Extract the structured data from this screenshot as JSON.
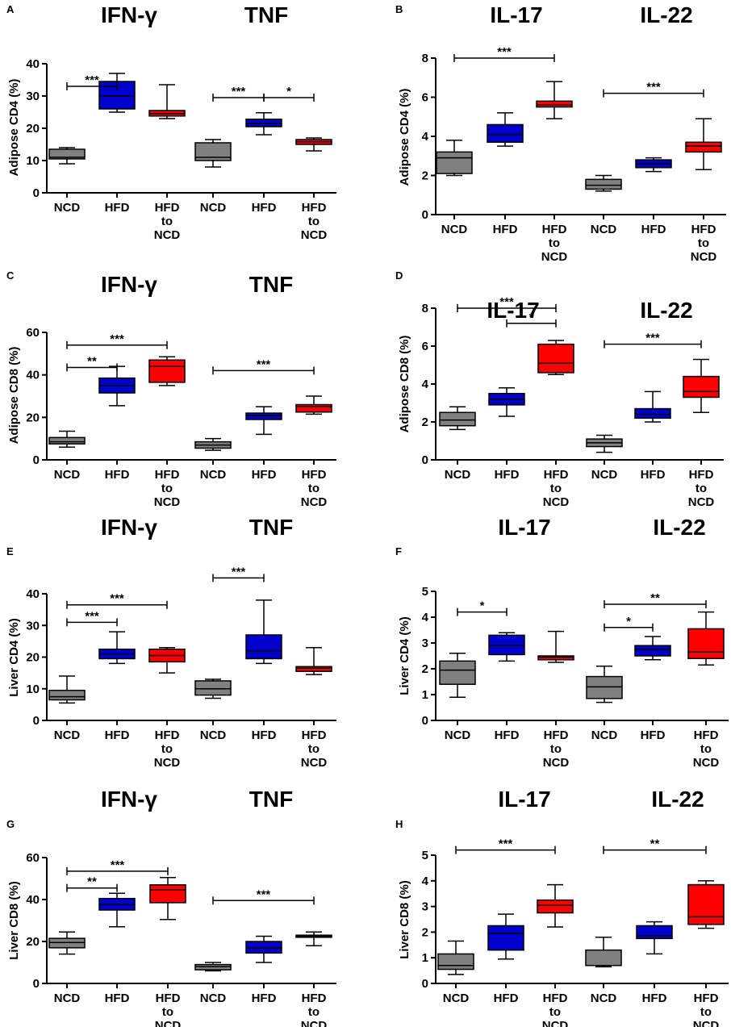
{
  "figure": {
    "colors": {
      "NCD": "#808080",
      "HFD": "#0000cc",
      "HFD to NCD": "#ff0000",
      "axis": "#000000"
    }
  },
  "chart_data": [
    {
      "type": "boxplot",
      "panel": "A",
      "group_titles": [
        "IFN-γ",
        "TNF"
      ],
      "ylabel": "Adipose CD4 (%)",
      "ylim": [
        0,
        40
      ],
      "yticks": [
        0,
        10,
        20,
        30,
        40
      ],
      "categories": [
        [
          "NCD"
        ],
        [
          "HFD"
        ],
        [
          "HFD",
          "to",
          "NCD"
        ],
        [
          "NCD"
        ],
        [
          "HFD"
        ],
        [
          "HFD",
          "to",
          "NCD"
        ]
      ],
      "groups": [
        "NCD",
        "HFD",
        "HFD to NCD",
        "NCD",
        "HFD",
        "HFD to NCD"
      ],
      "boxes": [
        {
          "min": 9.0,
          "q1": 10.5,
          "median": 11.0,
          "q3": 13.5,
          "max": 14.0
        },
        {
          "min": 25.0,
          "q1": 26.0,
          "median": 30.0,
          "q3": 34.5,
          "max": 37.0
        },
        {
          "min": 23.0,
          "q1": 23.8,
          "median": 24.5,
          "q3": 25.5,
          "max": 33.5
        },
        {
          "min": 8.0,
          "q1": 10.0,
          "median": 11.0,
          "q3": 15.5,
          "max": 16.5
        },
        {
          "min": 18.0,
          "q1": 20.5,
          "median": 21.5,
          "q3": 22.8,
          "max": 24.8
        },
        {
          "min": 13.0,
          "q1": 15.0,
          "median": 15.8,
          "q3": 16.5,
          "max": 17.0
        }
      ],
      "significance": [
        {
          "from": 0,
          "to": 1,
          "y": 33.0,
          "label": "***"
        },
        {
          "from": 3,
          "to": 4,
          "y": 29.5,
          "label": "***"
        },
        {
          "from": 4,
          "to": 5,
          "y": 29.5,
          "label": "*"
        }
      ]
    },
    {
      "type": "boxplot",
      "panel": "B",
      "group_titles": [
        "IL-17",
        "IL-22"
      ],
      "ylabel": "Adipose CD4 (%)",
      "ylim": [
        0,
        8
      ],
      "yticks": [
        0,
        2,
        4,
        6,
        8
      ],
      "categories": [
        [
          "NCD"
        ],
        [
          "HFD"
        ],
        [
          "HFD",
          "to",
          "NCD"
        ],
        [
          "NCD"
        ],
        [
          "HFD"
        ],
        [
          "HFD",
          "to",
          "NCD"
        ]
      ],
      "groups": [
        "NCD",
        "HFD",
        "HFD to NCD",
        "NCD",
        "HFD",
        "HFD to NCD"
      ],
      "boxes": [
        {
          "min": 2.0,
          "q1": 2.1,
          "median": 2.9,
          "q3": 3.2,
          "max": 3.8
        },
        {
          "min": 3.5,
          "q1": 3.7,
          "median": 4.1,
          "q3": 4.6,
          "max": 5.2
        },
        {
          "min": 4.9,
          "q1": 5.5,
          "median": 5.6,
          "q3": 5.8,
          "max": 6.8
        },
        {
          "min": 1.2,
          "q1": 1.3,
          "median": 1.5,
          "q3": 1.8,
          "max": 2.0
        },
        {
          "min": 2.2,
          "q1": 2.4,
          "median": 2.6,
          "q3": 2.8,
          "max": 2.9
        },
        {
          "min": 2.3,
          "q1": 3.2,
          "median": 3.5,
          "q3": 3.7,
          "max": 4.9
        }
      ],
      "significance": [
        {
          "from": 0,
          "to": 2,
          "y": 8.0,
          "label": "***"
        },
        {
          "from": 3,
          "to": 5,
          "y": 6.2,
          "label": "***"
        }
      ]
    },
    {
      "type": "boxplot",
      "panel": "C",
      "group_titles": [
        "IFN-γ",
        "TNF"
      ],
      "ylabel": "Adipose CD8 (%)",
      "ylim": [
        0,
        60
      ],
      "yticks": [
        0,
        20,
        40,
        60
      ],
      "categories": [
        [
          "NCD"
        ],
        [
          "HFD"
        ],
        [
          "HFD",
          "to",
          "NCD"
        ],
        [
          "NCD"
        ],
        [
          "HFD"
        ],
        [
          "HFD",
          "to",
          "NCD"
        ]
      ],
      "groups": [
        "NCD",
        "HFD",
        "HFD to NCD",
        "NCD",
        "HFD",
        "HFD to NCD"
      ],
      "boxes": [
        {
          "min": 6.0,
          "q1": 7.5,
          "median": 8.5,
          "q3": 10.5,
          "max": 13.5
        },
        {
          "min": 25.5,
          "q1": 31.5,
          "median": 35.0,
          "q3": 38.5,
          "max": 44.0
        },
        {
          "min": 35.0,
          "q1": 36.5,
          "median": 44.0,
          "q3": 47.0,
          "max": 48.5
        },
        {
          "min": 4.5,
          "q1": 5.5,
          "median": 7.0,
          "q3": 8.5,
          "max": 10.0
        },
        {
          "min": 12.0,
          "q1": 19.0,
          "median": 21.0,
          "q3": 22.0,
          "max": 25.0
        },
        {
          "min": 21.5,
          "q1": 22.5,
          "median": 25.0,
          "q3": 26.0,
          "max": 30.0
        }
      ],
      "significance": [
        {
          "from": 0,
          "to": 2,
          "y": 54.0,
          "label": "***"
        },
        {
          "from": 0,
          "to": 1,
          "y": 43.5,
          "label": "**"
        },
        {
          "from": 3,
          "to": 5,
          "y": 42.0,
          "label": "***"
        }
      ]
    },
    {
      "type": "boxplot",
      "panel": "D",
      "group_titles": [
        "IL-17",
        "IL-22"
      ],
      "ylabel": "Adipose CD8 (%)",
      "ylim": [
        0,
        8
      ],
      "yticks": [
        0,
        2,
        4,
        6,
        8
      ],
      "categories": [
        [
          "NCD"
        ],
        [
          "HFD"
        ],
        [
          "HFD",
          "to",
          "NCD"
        ],
        [
          "NCD"
        ],
        [
          "HFD"
        ],
        [
          "HFD",
          "to",
          "NCD"
        ]
      ],
      "groups": [
        "NCD",
        "HFD",
        "HFD to NCD",
        "NCD",
        "HFD",
        "HFD to NCD"
      ],
      "boxes": [
        {
          "min": 1.6,
          "q1": 1.8,
          "median": 2.1,
          "q3": 2.5,
          "max": 2.8
        },
        {
          "min": 2.3,
          "q1": 2.9,
          "median": 3.2,
          "q3": 3.5,
          "max": 3.8
        },
        {
          "min": 4.5,
          "q1": 4.6,
          "median": 5.1,
          "q3": 6.1,
          "max": 6.3
        },
        {
          "min": 0.4,
          "q1": 0.7,
          "median": 0.9,
          "q3": 1.1,
          "max": 1.3
        },
        {
          "min": 2.0,
          "q1": 2.2,
          "median": 2.4,
          "q3": 2.7,
          "max": 3.6
        },
        {
          "min": 2.5,
          "q1": 3.3,
          "median": 3.6,
          "q3": 4.4,
          "max": 5.3
        }
      ],
      "significance": [
        {
          "from": 0,
          "to": 2,
          "y": 8.0,
          "label": "***"
        },
        {
          "from": 1,
          "to": 2,
          "y": 7.2,
          "label": "*"
        },
        {
          "from": 3,
          "to": 5,
          "y": 6.1,
          "label": "***"
        }
      ]
    },
    {
      "type": "boxplot",
      "panel": "E",
      "group_titles": [
        "IFN-γ",
        "TNF"
      ],
      "ylabel": "Liver CD4 (%)",
      "ylim": [
        0,
        40
      ],
      "yticks": [
        0,
        10,
        20,
        30,
        40
      ],
      "categories": [
        [
          "NCD"
        ],
        [
          "HFD"
        ],
        [
          "HFD",
          "to",
          "NCD"
        ],
        [
          "NCD"
        ],
        [
          "HFD"
        ],
        [
          "HFD",
          "to",
          "NCD"
        ]
      ],
      "groups": [
        "NCD",
        "HFD",
        "HFD to NCD",
        "NCD",
        "HFD",
        "HFD to NCD"
      ],
      "boxes": [
        {
          "min": 5.5,
          "q1": 6.5,
          "median": 7.5,
          "q3": 9.5,
          "max": 14.0
        },
        {
          "min": 18.0,
          "q1": 19.5,
          "median": 21.0,
          "q3": 22.5,
          "max": 28.0
        },
        {
          "min": 15.0,
          "q1": 18.5,
          "median": 20.5,
          "q3": 22.5,
          "max": 23.0
        },
        {
          "min": 7.0,
          "q1": 8.0,
          "median": 10.0,
          "q3": 12.5,
          "max": 13.0
        },
        {
          "min": 18.0,
          "q1": 19.5,
          "median": 22.0,
          "q3": 27.0,
          "max": 38.0
        },
        {
          "min": 14.5,
          "q1": 15.5,
          "median": 16.5,
          "q3": 17.0,
          "max": 23.0
        }
      ],
      "significance": [
        {
          "from": 0,
          "to": 2,
          "y": 36.5,
          "label": "***"
        },
        {
          "from": 0,
          "to": 1,
          "y": 31.0,
          "label": "***"
        },
        {
          "from": 3,
          "to": 4,
          "y": 45.0,
          "label": "***"
        }
      ]
    },
    {
      "type": "boxplot",
      "panel": "F",
      "group_titles": [
        "IL-17",
        "IL-22"
      ],
      "ylabel": "Liver CD4 (%)",
      "ylim": [
        0,
        5
      ],
      "yticks": [
        0,
        1,
        2,
        3,
        4,
        5
      ],
      "categories": [
        [
          "NCD"
        ],
        [
          "HFD"
        ],
        [
          "HFD",
          "to",
          "NCD"
        ],
        [
          "NCD"
        ],
        [
          "HFD"
        ],
        [
          "HFD",
          "to",
          "NCD"
        ]
      ],
      "groups": [
        "NCD",
        "HFD",
        "HFD to NCD",
        "NCD",
        "HFD",
        "HFD to NCD"
      ],
      "boxes": [
        {
          "min": 0.9,
          "q1": 1.4,
          "median": 1.95,
          "q3": 2.3,
          "max": 2.6
        },
        {
          "min": 2.3,
          "q1": 2.55,
          "median": 2.9,
          "q3": 3.3,
          "max": 3.4
        },
        {
          "min": 2.25,
          "q1": 2.35,
          "median": 2.45,
          "q3": 2.5,
          "max": 3.45
        },
        {
          "min": 0.7,
          "q1": 0.85,
          "median": 1.3,
          "q3": 1.7,
          "max": 2.1
        },
        {
          "min": 2.35,
          "q1": 2.5,
          "median": 2.75,
          "q3": 2.9,
          "max": 3.25
        },
        {
          "min": 2.15,
          "q1": 2.4,
          "median": 2.65,
          "q3": 3.55,
          "max": 4.2
        }
      ],
      "significance": [
        {
          "from": 0,
          "to": 1,
          "y": 4.2,
          "label": "*"
        },
        {
          "from": 3,
          "to": 4,
          "y": 3.6,
          "label": "*"
        },
        {
          "from": 3,
          "to": 5,
          "y": 4.5,
          "label": "**"
        }
      ]
    },
    {
      "type": "boxplot",
      "panel": "G",
      "group_titles": [
        "IFN-γ",
        "TNF"
      ],
      "ylabel": "Liver CD8 (%)",
      "ylim": [
        0,
        60
      ],
      "yticks": [
        0,
        20,
        40,
        60
      ],
      "categories": [
        [
          "NCD"
        ],
        [
          "HFD"
        ],
        [
          "HFD",
          "to",
          "NCD"
        ],
        [
          "NCD"
        ],
        [
          "HFD"
        ],
        [
          "HFD",
          "to",
          "NCD"
        ]
      ],
      "groups": [
        "NCD",
        "HFD",
        "HFD to NCD",
        "NCD",
        "HFD",
        "HFD to NCD"
      ],
      "boxes": [
        {
          "min": 14.0,
          "q1": 17.0,
          "median": 19.5,
          "q3": 21.5,
          "max": 24.5
        },
        {
          "min": 27.0,
          "q1": 35.0,
          "median": 37.5,
          "q3": 40.5,
          "max": 43.0
        },
        {
          "min": 30.5,
          "q1": 38.5,
          "median": 44.5,
          "q3": 47.0,
          "max": 50.5
        },
        {
          "min": 6.0,
          "q1": 6.5,
          "median": 8.0,
          "q3": 9.0,
          "max": 10.0
        },
        {
          "min": 10.0,
          "q1": 14.5,
          "median": 17.0,
          "q3": 20.0,
          "max": 22.5
        },
        {
          "min": 18.0,
          "q1": 22.0,
          "median": 22.5,
          "q3": 23.0,
          "max": 24.5
        }
      ],
      "significance": [
        {
          "from": 0,
          "to": 2,
          "y": 53.5,
          "label": "***"
        },
        {
          "from": 0,
          "to": 1,
          "y": 45.5,
          "label": "**"
        },
        {
          "from": 3,
          "to": 5,
          "y": 39.5,
          "label": "***"
        }
      ]
    },
    {
      "type": "boxplot",
      "panel": "H",
      "group_titles": [
        "IL-17",
        "IL-22"
      ],
      "ylabel": "Liver CD8 (%)",
      "ylim": [
        0,
        5
      ],
      "yticks": [
        0,
        1,
        2,
        3,
        4,
        5
      ],
      "categories": [
        [
          "NCD"
        ],
        [
          "HFD"
        ],
        [
          "HFD",
          "to",
          "NCD"
        ],
        [
          "NCD"
        ],
        [
          "HFD"
        ],
        [
          "HFD",
          "to",
          "NCD"
        ]
      ],
      "groups": [
        "NCD",
        "HFD",
        "HFD to NCD",
        "NCD",
        "HFD",
        "HFD to NCD"
      ],
      "boxes": [
        {
          "min": 0.35,
          "q1": 0.55,
          "median": 0.7,
          "q3": 1.15,
          "max": 1.65
        },
        {
          "min": 0.95,
          "q1": 1.3,
          "median": 1.95,
          "q3": 2.25,
          "max": 2.7
        },
        {
          "min": 2.2,
          "q1": 2.75,
          "median": 3.05,
          "q3": 3.25,
          "max": 3.85
        },
        {
          "min": 0.65,
          "q1": 0.7,
          "median": 0.7,
          "q3": 1.3,
          "max": 1.8
        },
        {
          "min": 1.15,
          "q1": 1.75,
          "median": 1.85,
          "q3": 2.25,
          "max": 2.4
        },
        {
          "min": 2.15,
          "q1": 2.3,
          "median": 2.6,
          "q3": 3.85,
          "max": 4.0
        }
      ],
      "significance": [
        {
          "from": 0,
          "to": 2,
          "y": 5.2,
          "label": "***"
        },
        {
          "from": 3,
          "to": 5,
          "y": 5.2,
          "label": "**"
        }
      ]
    }
  ]
}
